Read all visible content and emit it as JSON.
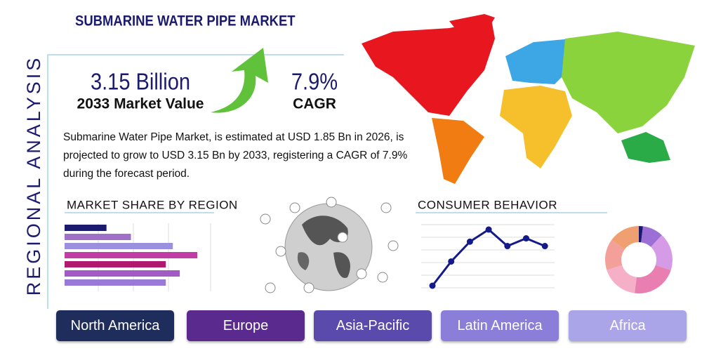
{
  "side_title": "REGIONAL ANALYSIS",
  "title": "SUBMARINE WATER PIPE MARKET",
  "market_value": {
    "value": "3.15 Billion",
    "label": "2033 Market Value"
  },
  "cagr": {
    "value": "7.9%",
    "label": "CAGR"
  },
  "description": "Submarine Water Pipe Market, is estimated at USD 1.85 Bn in 2026, is projected to grow to USD 3.15 Bn by 2033, registering a CAGR of 7.9% during the forecast period.",
  "market_share_chart": {
    "type": "bar",
    "title": "MARKET SHARE BY REGION",
    "values": [
      12,
      19,
      31,
      38,
      29,
      33,
      29
    ],
    "colors": [
      "#1b1a6e",
      "#a070c8",
      "#9b8fe0",
      "#c23ca6",
      "#b0196e",
      "#a25bc4",
      "#9a7ad8"
    ]
  },
  "consumer_behavior_chart": {
    "type": "line",
    "title": "CONSUMER BEHAVIOR",
    "values": [
      2,
      4.2,
      6,
      7.1,
      5.6,
      6.3,
      5.6
    ],
    "color": "#141a8a"
  },
  "donut_chart": {
    "type": "pie",
    "values": [
      2,
      10,
      18,
      22,
      18,
      15,
      15
    ],
    "colors": [
      "#1b1a6e",
      "#9b6fd6",
      "#d69be6",
      "#e87fb0",
      "#f5b0c8",
      "#f4a09a",
      "#f0a070"
    ]
  },
  "regions": [
    "North America",
    "Europe",
    "Asia-Pacific",
    "Latin America",
    "Africa"
  ]
}
